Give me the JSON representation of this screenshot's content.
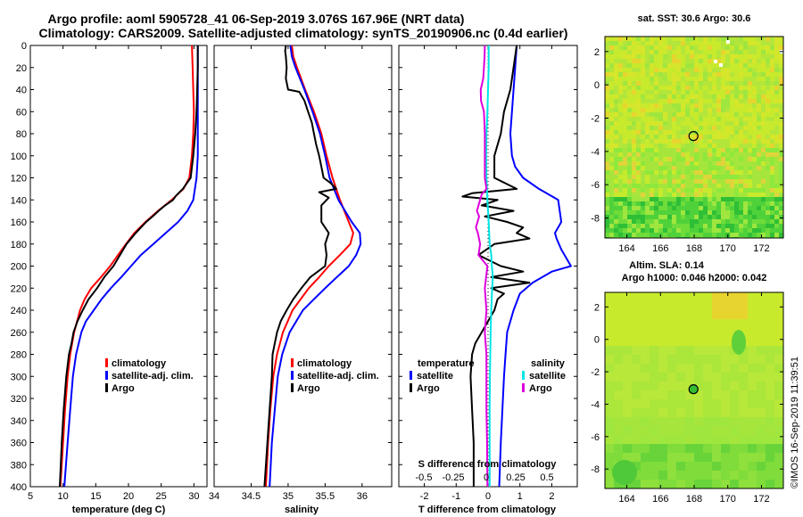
{
  "title_line1": "Argo profile: aoml 5905728_41 06-Sep-2019 3.076S 167.96E (NRT data)",
  "title_line2": "Climatology: CARS2009. Satellite-adjusted climatology: synTS_20190906.nc (0.4d earlier)",
  "watermark": "©IMOS 16-Sep-2019 11:39:51",
  "colors": {
    "climatology": "#ff0000",
    "satellite": "#0000ff",
    "argo": "#000000",
    "sat_salinity": "#00e5e5",
    "salinity_diff": "#dd00dd"
  },
  "chart_data": [
    {
      "type": "line",
      "id": "temperature",
      "xlabel": "temperature (deg C)",
      "ylabel": "",
      "xlim": [
        5,
        32
      ],
      "ylim": [
        400,
        0
      ],
      "xticks": [
        5,
        10,
        15,
        20,
        25,
        30
      ],
      "yticks": [
        0,
        20,
        40,
        60,
        80,
        100,
        120,
        140,
        160,
        180,
        200,
        220,
        240,
        260,
        280,
        300,
        320,
        340,
        360,
        380,
        400
      ],
      "legend": {
        "position": "bottom-right",
        "entries": [
          "climatology",
          "satellite-adj. clim.",
          "Argo"
        ]
      },
      "series": [
        {
          "name": "climatology",
          "color": "red",
          "depth": [
            0,
            20,
            40,
            60,
            80,
            100,
            120,
            130,
            140,
            150,
            160,
            170,
            180,
            190,
            200,
            210,
            220,
            230,
            240,
            260,
            280,
            300,
            330,
            360,
            400
          ],
          "values": [
            29.7,
            29.8,
            29.9,
            30.0,
            29.9,
            29.7,
            29.3,
            28.4,
            26.6,
            24.5,
            22.6,
            20.9,
            19.6,
            18.4,
            17.2,
            15.8,
            14.3,
            13.3,
            12.6,
            11.7,
            11.1,
            10.7,
            10.3,
            10.0,
            9.6
          ]
        },
        {
          "name": "satellite-adj. clim.",
          "color": "blue",
          "depth": [
            0,
            20,
            40,
            60,
            80,
            100,
            120,
            140,
            150,
            160,
            170,
            180,
            190,
            200,
            210,
            220,
            230,
            240,
            250,
            260,
            280,
            300,
            330,
            360,
            400
          ],
          "values": [
            30.6,
            30.6,
            30.6,
            30.6,
            30.6,
            30.6,
            30.4,
            29.9,
            29.0,
            27.6,
            25.7,
            23.8,
            21.9,
            20.4,
            18.9,
            17.3,
            15.9,
            14.7,
            13.5,
            12.8,
            12.0,
            11.5,
            11.1,
            10.7,
            10.2
          ]
        },
        {
          "name": "Argo",
          "color": "black",
          "depth": [
            0,
            20,
            40,
            60,
            80,
            100,
            120,
            125,
            130,
            133,
            136,
            140,
            145,
            150,
            155,
            160,
            170,
            180,
            190,
            200,
            210,
            220,
            230,
            240,
            250,
            260,
            270,
            280,
            300,
            330,
            360,
            400
          ],
          "values": [
            30.6,
            30.6,
            30.5,
            30.4,
            30.2,
            29.9,
            29.5,
            28.9,
            28.3,
            27.8,
            27.3,
            26.8,
            25.6,
            24.6,
            23.7,
            22.7,
            21.1,
            19.7,
            18.7,
            17.7,
            16.3,
            15.2,
            13.9,
            13.0,
            12.2,
            11.6,
            11.3,
            10.9,
            10.5,
            10.1,
            9.8,
            9.5
          ]
        }
      ]
    },
    {
      "type": "line",
      "id": "salinity",
      "xlabel": "salinity",
      "ylabel": "",
      "xlim": [
        34,
        36.4
      ],
      "ylim": [
        400,
        0
      ],
      "xticks": [
        34,
        34.5,
        35,
        35.5,
        36
      ],
      "yticks": [
        0,
        20,
        40,
        60,
        80,
        100,
        120,
        140,
        160,
        180,
        200,
        220,
        240,
        260,
        280,
        300,
        320,
        340,
        360,
        380,
        400
      ],
      "legend": {
        "position": "bottom-right",
        "entries": [
          "climatology",
          "satellite-adj. clim.",
          "Argo"
        ]
      },
      "series": [
        {
          "name": "climatology",
          "color": "red",
          "depth": [
            0,
            10,
            20,
            40,
            60,
            80,
            100,
            120,
            140,
            160,
            170,
            180,
            190,
            200,
            210,
            220,
            230,
            240,
            260,
            280,
            300,
            330,
            360,
            400
          ],
          "values": [
            35.05,
            35.07,
            35.12,
            35.23,
            35.35,
            35.45,
            35.52,
            35.6,
            35.7,
            35.82,
            35.88,
            35.84,
            35.7,
            35.55,
            35.42,
            35.28,
            35.17,
            35.06,
            34.93,
            34.85,
            34.8,
            34.76,
            34.73,
            34.7
          ]
        },
        {
          "name": "satellite-adj. clim.",
          "color": "blue",
          "depth": [
            0,
            10,
            20,
            40,
            60,
            80,
            100,
            120,
            140,
            160,
            170,
            180,
            190,
            200,
            210,
            220,
            230,
            240,
            260,
            280,
            300,
            330,
            360,
            400
          ],
          "values": [
            35.03,
            35.05,
            35.1,
            35.22,
            35.33,
            35.43,
            35.5,
            35.56,
            35.68,
            35.86,
            35.97,
            35.98,
            35.92,
            35.82,
            35.66,
            35.5,
            35.35,
            35.2,
            35.02,
            34.92,
            34.86,
            34.82,
            34.78,
            34.75
          ]
        },
        {
          "name": "Argo",
          "color": "black",
          "depth": [
            0,
            5,
            10,
            20,
            30,
            40,
            42,
            50,
            60,
            70,
            80,
            90,
            100,
            110,
            120,
            125,
            130,
            133,
            138,
            145,
            160,
            170,
            180,
            190,
            200,
            210,
            220,
            230,
            240,
            250,
            260,
            270,
            280,
            300,
            330,
            360,
            400
          ],
          "values": [
            34.97,
            34.96,
            34.97,
            34.98,
            34.97,
            35.0,
            35.15,
            35.22,
            35.27,
            35.32,
            35.35,
            35.38,
            35.42,
            35.45,
            35.48,
            35.58,
            35.65,
            35.42,
            35.55,
            35.45,
            35.45,
            35.55,
            35.5,
            35.52,
            35.5,
            35.3,
            35.18,
            35.07,
            34.98,
            34.9,
            34.85,
            34.82,
            34.79,
            34.78,
            34.75,
            34.72,
            34.68
          ]
        }
      ]
    },
    {
      "type": "line",
      "id": "differences",
      "xlabel": "T difference from climatology",
      "xlabel_top": "S difference from climatology",
      "xlim": [
        -2.8,
        2.8
      ],
      "ylim": [
        400,
        0
      ],
      "xticks": [
        -2,
        -1,
        0,
        1,
        2
      ],
      "xticks_s": [
        -0.5,
        -0.25,
        0,
        0.25,
        0.5
      ],
      "yticks": [
        0,
        20,
        40,
        60,
        80,
        100,
        120,
        140,
        160,
        180,
        200,
        220,
        240,
        260,
        280,
        300,
        320,
        340,
        360,
        380,
        400
      ],
      "legend": {
        "temperature_title": "temperature",
        "salinity_title": "salinity",
        "entries_left": [
          "satellite",
          "Argo"
        ],
        "entries_right": [
          "satellite",
          "Argo"
        ]
      },
      "series": [
        {
          "name": "temperature satellite",
          "color": "blue",
          "depth": [
            0,
            20,
            40,
            60,
            80,
            100,
            110,
            120,
            130,
            140,
            160,
            170,
            175,
            185,
            195,
            200,
            205,
            215,
            225,
            240,
            260,
            280,
            300,
            330,
            360,
            400
          ],
          "values": [
            0.9,
            0.85,
            0.8,
            0.75,
            0.7,
            0.75,
            0.85,
            1.1,
            1.6,
            2.2,
            2.3,
            2.1,
            2.15,
            2.3,
            2.5,
            2.6,
            2.0,
            1.4,
            1.0,
            0.8,
            0.6,
            0.55,
            0.5,
            0.45,
            0.4,
            0.35
          ]
        },
        {
          "name": "temperature Argo",
          "color": "black",
          "depth": [
            0,
            20,
            40,
            60,
            80,
            100,
            120,
            130,
            134,
            137,
            140,
            145,
            150,
            155,
            160,
            165,
            170,
            175,
            180,
            190,
            200,
            205,
            210,
            215,
            220,
            225,
            230,
            240,
            250,
            260,
            270,
            280,
            300,
            330,
            360,
            400
          ],
          "values": [
            0.9,
            0.8,
            0.7,
            0.5,
            0.4,
            0.2,
            0.2,
            0.9,
            -0.5,
            -0.8,
            0.3,
            -0.2,
            0.8,
            -0.1,
            0.6,
            1.1,
            0.9,
            1.3,
            0.2,
            -0.3,
            0.4,
            1.1,
            0.1,
            1.3,
            0.1,
            0.5,
            0.3,
            0.2,
            0.0,
            -0.2,
            -0.4,
            -0.5,
            -0.55,
            -0.5,
            -0.45,
            -0.45
          ]
        },
        {
          "name": "salinity satellite",
          "color": "cyan",
          "depth": [
            0,
            20,
            40,
            60,
            80,
            100,
            120,
            140,
            160,
            180,
            190,
            200,
            210,
            220,
            240,
            260,
            280,
            300,
            330,
            360,
            400
          ],
          "values": [
            0.02,
            0.02,
            0.0,
            -0.02,
            -0.05,
            -0.06,
            -0.05,
            -0.02,
            0.02,
            0.05,
            0.1,
            0.12,
            0.15,
            0.13,
            0.1,
            0.08,
            0.07,
            0.06,
            0.05,
            0.05,
            0.05
          ]
        },
        {
          "name": "salinity Argo",
          "color": "magenta",
          "depth": [
            0,
            10,
            20,
            30,
            40,
            50,
            60,
            80,
            100,
            120,
            130,
            135,
            140,
            150,
            155,
            165,
            170,
            180,
            190,
            200,
            220,
            240,
            260,
            280,
            300,
            330,
            360,
            400
          ],
          "values": [
            -0.1,
            -0.11,
            -0.13,
            -0.15,
            -0.23,
            -0.22,
            -0.13,
            -0.1,
            -0.1,
            -0.1,
            -0.05,
            -0.2,
            -0.25,
            -0.35,
            -0.28,
            -0.38,
            -0.32,
            -0.25,
            -0.3,
            -0.02,
            -0.1,
            -0.05,
            -0.1,
            -0.05,
            -0.05,
            -0.05,
            -0.03,
            -0.02
          ]
        }
      ]
    },
    {
      "type": "heatmap",
      "id": "sst_map",
      "title": "sat. SST: 30.6 Argo: 30.6",
      "xlim": [
        162.7,
        173.3
      ],
      "ylim": [
        -9.2,
        2.9
      ],
      "xticks": [
        164,
        166,
        168,
        170,
        172
      ],
      "yticks": [
        -8,
        -6,
        -4,
        -2,
        0,
        2
      ],
      "marker": {
        "lon": 167.96,
        "lat": -3.076
      }
    },
    {
      "type": "heatmap",
      "id": "sla_map",
      "title_line1": "Altim. SLA: 0.14",
      "title_line2": "Argo h1000: 0.046 h2000: 0.042",
      "xlim": [
        162.7,
        173.3
      ],
      "ylim": [
        -9.2,
        2.9
      ],
      "xticks": [
        164,
        166,
        168,
        170,
        172
      ],
      "yticks": [
        -8,
        -6,
        -4,
        -2,
        0,
        2
      ],
      "marker": {
        "lon": 167.96,
        "lat": -3.076
      }
    }
  ]
}
